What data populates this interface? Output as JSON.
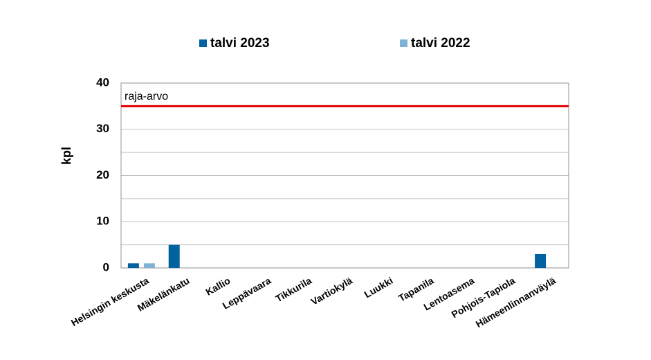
{
  "chart_data": {
    "type": "bar",
    "y_label": "kpl",
    "categories": [
      "Helsingin keskusta",
      "Mäkelänkatu",
      "Kallio",
      "Leppävaara",
      "Tikkurila",
      "Vartiokylä",
      "Luukki",
      "Tapanila",
      "Lentoasema",
      "Pohjois-Tapiola",
      "Hämeenlinnanväylä"
    ],
    "series": [
      {
        "name": "talvi 2023",
        "color": "#0063a0",
        "values": [
          1,
          5,
          0,
          0,
          0,
          0,
          0,
          0,
          0,
          0,
          3
        ]
      },
      {
        "name": "talvi 2022",
        "color": "#7fb2d4",
        "values": [
          1,
          0,
          0,
          0,
          0,
          0,
          0,
          0,
          0,
          0,
          0
        ]
      }
    ],
    "reference_line": {
      "value": 35,
      "label": "raja-arvo",
      "color": "#e00000"
    },
    "ylim": [
      0,
      40
    ],
    "yticks": [
      0,
      10,
      20,
      30,
      40
    ],
    "minor_yticks": [
      5,
      15,
      25,
      35
    ],
    "grid": true
  }
}
